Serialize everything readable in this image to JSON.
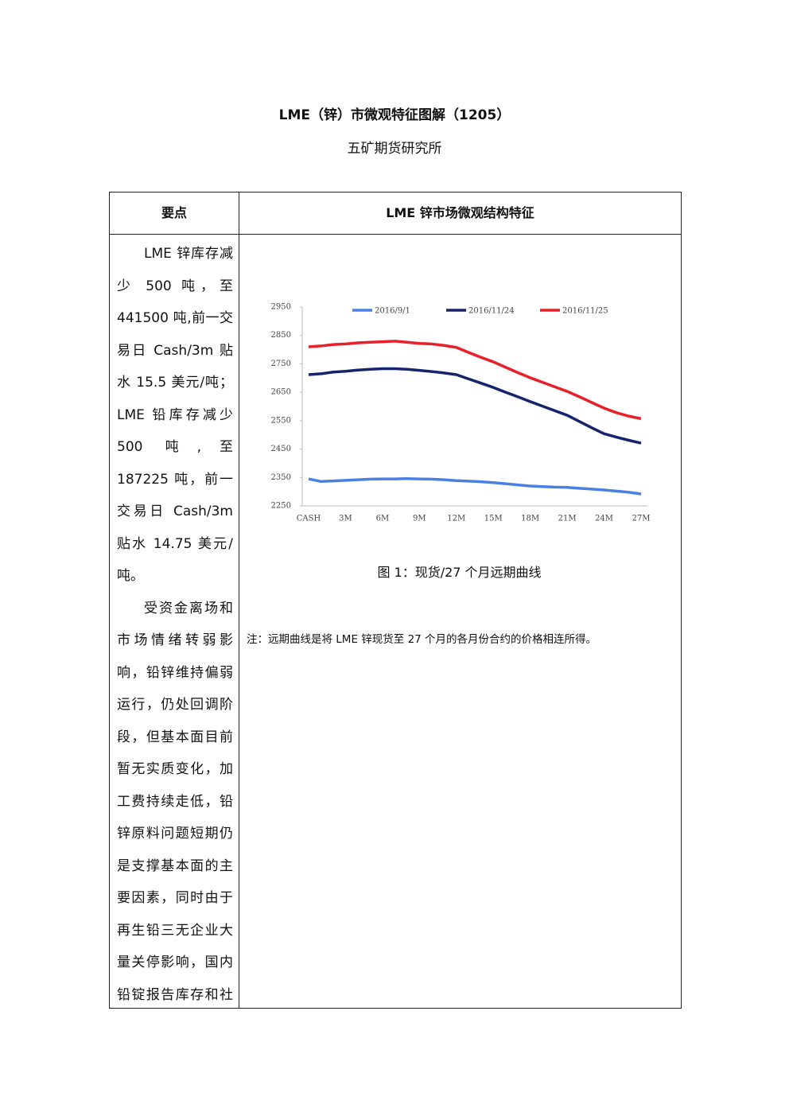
{
  "header": {
    "title": "LME（锌）市微观特征图解（1205）",
    "subtitle": "五矿期货研究所"
  },
  "table": {
    "headers": [
      "要点",
      "LME 锌市场微观结构特征"
    ],
    "left_paragraphs": [
      "LME 锌库存减少 500 吨，至 441500 吨,前一交易日 Cash/3m 贴水 15.5 美元/吨；LME 铅库存减少 500 吨,至 187225 吨，前一交易日 Cash/3m 贴水 14.75 美元/吨。",
      "受资金离场和市场情绪转弱影响，铅锌维持偏弱运行，仍处回调阶段，但基本面目前暂无实质变化，加工费持续走低，铅锌原料问题短期仍是支撑基本面的主要因素，同时由于再生铅三无企业大量关停影响，国内铅锭报告库存和社会库存均探底，外"
    ],
    "caption": "图 1：现货/27 个月远期曲线",
    "note": "注：远期曲线是将 LME 锌现货至 27 个月的各月份合约的价格相连所得。"
  },
  "chart_data": {
    "type": "line",
    "categories": [
      "CASH",
      null,
      null,
      "3M",
      null,
      null,
      "6M",
      null,
      null,
      "9M",
      null,
      null,
      "12M",
      null,
      null,
      "15M",
      null,
      null,
      "18M",
      null,
      null,
      "21M",
      null,
      null,
      "24M",
      null,
      null,
      "27M"
    ],
    "ylim": [
      2250,
      2950
    ],
    "yticks": [
      2250,
      2350,
      2450,
      2550,
      2650,
      2750,
      2850,
      2950
    ],
    "legend": "top",
    "series": [
      {
        "name": "2016/9/1",
        "color": "#4a80e4",
        "values": [
          2345,
          2336,
          2338,
          2340,
          2342,
          2344,
          2345,
          2345,
          2346,
          2345,
          2344,
          2342,
          2339,
          2337,
          2335,
          2332,
          2328,
          2324,
          2320,
          2318,
          2316,
          2315,
          2312,
          2309,
          2306,
          2302,
          2298,
          2292
        ]
      },
      {
        "name": "2016/11/24",
        "color": "#16246e",
        "values": [
          2712,
          2715,
          2721,
          2724,
          2728,
          2731,
          2733,
          2733,
          2731,
          2727,
          2723,
          2718,
          2712,
          2697,
          2682,
          2667,
          2650,
          2634,
          2617,
          2601,
          2585,
          2569,
          2547,
          2525,
          2504,
          2492,
          2481,
          2471
        ]
      },
      {
        "name": "2016/11/25",
        "color": "#e8202a",
        "values": [
          2810,
          2813,
          2818,
          2820,
          2824,
          2826,
          2828,
          2830,
          2826,
          2822,
          2820,
          2815,
          2808,
          2790,
          2773,
          2757,
          2738,
          2719,
          2701,
          2685,
          2669,
          2653,
          2634,
          2614,
          2594,
          2578,
          2566,
          2557
        ]
      }
    ]
  }
}
